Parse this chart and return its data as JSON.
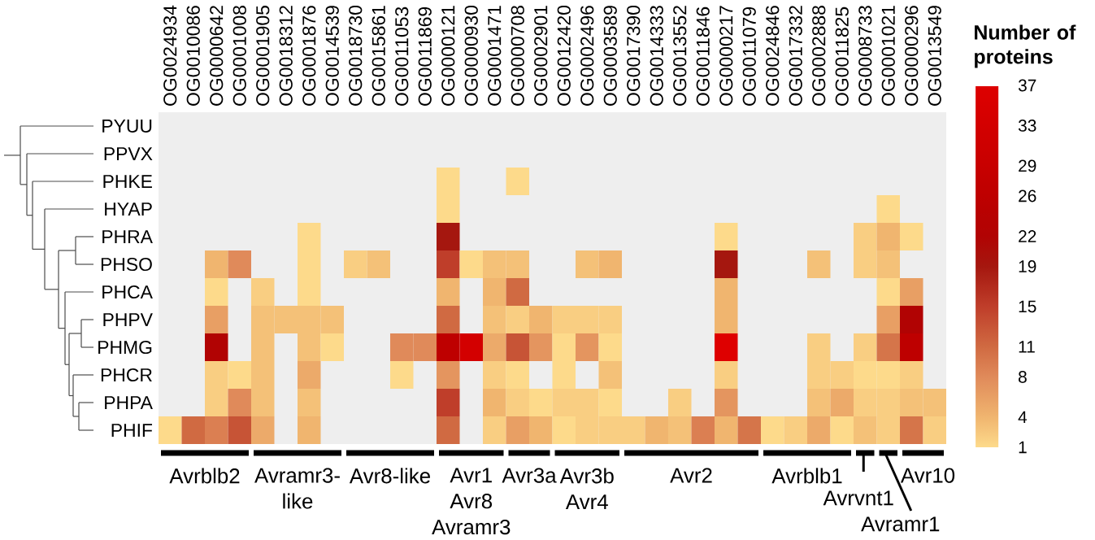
{
  "chart_data": {
    "type": "heatmap",
    "categories": [
      "OG0024934",
      "OG0010086",
      "OG0000642",
      "OG0001008",
      "OG0001905",
      "OG0018312",
      "OG0001876",
      "OG0014539",
      "OG0018730",
      "OG0015861",
      "OG0011053",
      "OG0011869",
      "OG0000121",
      "OG0000930",
      "OG0001471",
      "OG0000708",
      "OG0002901",
      "OG0012420",
      "OG0002496",
      "OG0003589",
      "OG0017390",
      "OG0014333",
      "OG0013552",
      "OG0011846",
      "OG0000217",
      "OG0011079",
      "OG0024846",
      "OG0017332",
      "OG0002888",
      "OG0011825",
      "OG0008733",
      "OG0001021",
      "OG0000296",
      "OG0013549"
    ],
    "y_categories": [
      "PYUU",
      "PPVX",
      "PHKE",
      "HYAP",
      "PHRA",
      "PHSO",
      "PHCA",
      "PHPV",
      "PHMG",
      "PHCR",
      "PHPA",
      "PHIF"
    ],
    "cells": [
      [
        null,
        null,
        null,
        null,
        null,
        null,
        null,
        null,
        null,
        null,
        null,
        null,
        null,
        null,
        null,
        null,
        null,
        null,
        null,
        null,
        null,
        null,
        null,
        null,
        null,
        null,
        null,
        null,
        null,
        null,
        null,
        null,
        null,
        null
      ],
      [
        null,
        null,
        null,
        null,
        null,
        null,
        null,
        null,
        null,
        null,
        null,
        null,
        null,
        null,
        null,
        null,
        null,
        null,
        null,
        null,
        null,
        null,
        null,
        null,
        null,
        null,
        null,
        null,
        null,
        null,
        null,
        null,
        null,
        null
      ],
      [
        null,
        null,
        null,
        null,
        null,
        null,
        null,
        null,
        null,
        null,
        null,
        null,
        1,
        null,
        null,
        1,
        null,
        null,
        null,
        null,
        null,
        null,
        null,
        null,
        null,
        null,
        null,
        null,
        null,
        null,
        null,
        null,
        null,
        null
      ],
      [
        null,
        null,
        null,
        null,
        null,
        null,
        null,
        null,
        null,
        null,
        null,
        null,
        1,
        null,
        null,
        null,
        null,
        null,
        null,
        null,
        null,
        null,
        null,
        null,
        null,
        null,
        null,
        null,
        null,
        null,
        null,
        1,
        null,
        null
      ],
      [
        null,
        null,
        null,
        null,
        null,
        null,
        1,
        null,
        null,
        null,
        null,
        null,
        19,
        null,
        null,
        null,
        null,
        null,
        null,
        null,
        null,
        null,
        null,
        null,
        1,
        null,
        null,
        null,
        null,
        null,
        2,
        4,
        1,
        null
      ],
      [
        null,
        null,
        4,
        8,
        null,
        null,
        1,
        null,
        2,
        3,
        null,
        null,
        15,
        1,
        3,
        3,
        null,
        null,
        3,
        4,
        null,
        null,
        null,
        null,
        19,
        null,
        null,
        null,
        3,
        null,
        2,
        3,
        null,
        null
      ],
      [
        null,
        null,
        1,
        null,
        2,
        null,
        1,
        null,
        null,
        null,
        null,
        null,
        4,
        null,
        4,
        11,
        null,
        null,
        null,
        null,
        null,
        null,
        null,
        null,
        4,
        null,
        null,
        null,
        null,
        null,
        null,
        1,
        6,
        null
      ],
      [
        null,
        null,
        6,
        null,
        3,
        3,
        3,
        3,
        null,
        null,
        null,
        null,
        11,
        null,
        3,
        2,
        4,
        2,
        2,
        2,
        null,
        null,
        null,
        null,
        4,
        null,
        null,
        null,
        null,
        null,
        null,
        6,
        22,
        null
      ],
      [
        null,
        null,
        22,
        null,
        3,
        null,
        3,
        1,
        null,
        null,
        8,
        8,
        26,
        33,
        5,
        13,
        7,
        1,
        7,
        1,
        null,
        null,
        null,
        null,
        37,
        null,
        null,
        null,
        2,
        null,
        2,
        10,
        26,
        null
      ],
      [
        null,
        null,
        2,
        1,
        3,
        null,
        5,
        null,
        null,
        null,
        1,
        null,
        7,
        null,
        2,
        1,
        null,
        1,
        null,
        3,
        null,
        null,
        null,
        null,
        2,
        null,
        null,
        null,
        2,
        2,
        1,
        1,
        2,
        null
      ],
      [
        null,
        null,
        2,
        8,
        3,
        null,
        3,
        null,
        null,
        null,
        null,
        null,
        15,
        null,
        4,
        2,
        1,
        2,
        2,
        1,
        null,
        null,
        2,
        null,
        7,
        null,
        null,
        null,
        3,
        5,
        2,
        2,
        3,
        3
      ],
      [
        1,
        11,
        9,
        13,
        5,
        null,
        4,
        null,
        null,
        null,
        null,
        null,
        11,
        null,
        2,
        6,
        4,
        1,
        2,
        2,
        2,
        4,
        3,
        9,
        4,
        10,
        1,
        2,
        5,
        1,
        3,
        2,
        10,
        2
      ]
    ],
    "clim": [
      1,
      37
    ],
    "cticks": [
      1,
      4,
      8,
      11,
      15,
      19,
      22,
      26,
      29,
      33,
      37
    ],
    "clabel": "Number of proteins",
    "annotations": [
      "Avrblb2",
      "Avramr3-like",
      "Avr8-like",
      "Avr1 Avr8 Avramr3",
      "Avr3a",
      "Avr3b Avr4",
      "Avr2",
      "Avrblb1",
      "Avrvnt1",
      "Avramr1",
      "Avr10"
    ]
  }
}
